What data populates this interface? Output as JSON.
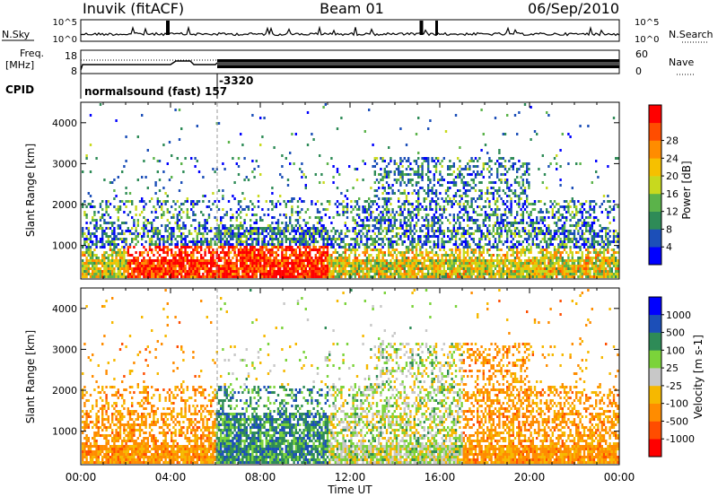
{
  "header": {
    "station": "Inuvik (fitACF)",
    "beam": "Beam 01",
    "date": "06/Sep/2010"
  },
  "left_labels": {
    "nsky": "N.Sky",
    "freq": "Freq.",
    "mhz": "[MHz]",
    "cpid": "CPID"
  },
  "right_labels": {
    "nsearch": "N.Search",
    "nave": "Nave"
  },
  "cpid_text": {
    "main": "normalsound (fast) 157",
    "secondary": "-3320"
  },
  "noise_axis": {
    "top": "10^5",
    "bottom": "10^0"
  },
  "freq_axis": {
    "top": "18",
    "bottom": "8"
  },
  "nave_axis": {
    "top": "60",
    "bottom": "0"
  },
  "colors": {
    "power": [
      "#0000ff",
      "#1c4fb8",
      "#2e8b57",
      "#5bb34a",
      "#c8d91e",
      "#f6c000",
      "#ff8c00",
      "#ff4d00",
      "#ff0000"
    ],
    "velocity": [
      "#ff0000",
      "#ff4d00",
      "#ff8c00",
      "#f6b800",
      "#c8c8c8",
      "#7bd33a",
      "#2e8b57",
      "#1c4fb8",
      "#0000ff"
    ]
  },
  "chart_data": [
    {
      "type": "heatmap",
      "ylabel": "Slant Range [km]",
      "xlabel": "Time UT",
      "x_ticks": [
        "00:00",
        "04:00",
        "08:00",
        "12:00",
        "16:00",
        "20:00",
        "00:00"
      ],
      "y_ticks": [
        "1000",
        "2000",
        "3000",
        "4000"
      ],
      "ylim": [
        180,
        4500
      ],
      "xlim_hours": [
        0,
        24
      ],
      "colorbar": {
        "label": "Power [dB]",
        "ticks": [
          "4",
          "8",
          "12",
          "16",
          "20",
          "24",
          "28"
        ]
      }
    },
    {
      "type": "heatmap",
      "ylabel": "Slant Range [km]",
      "xlabel": "Time UT",
      "x_ticks": [
        "00:00",
        "04:00",
        "08:00",
        "12:00",
        "16:00",
        "20:00",
        "00:00"
      ],
      "y_ticks": [
        "1000",
        "2000",
        "3000",
        "4000"
      ],
      "ylim": [
        180,
        4500
      ],
      "xlim_hours": [
        0,
        24
      ],
      "colorbar": {
        "label": "Velocity [m s-1]",
        "ticks": [
          "1000",
          "500",
          "100",
          "25",
          "-25",
          "-100",
          "-500",
          "-1000"
        ]
      }
    }
  ]
}
